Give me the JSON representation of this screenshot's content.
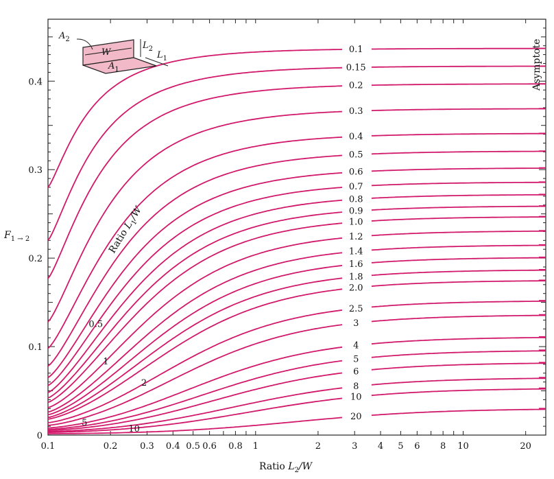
{
  "chart_data": {
    "type": "line",
    "title": "",
    "xlabel": {
      "prefix": "Ratio ",
      "var": "L",
      "sub": "2",
      "suffix": "/W"
    },
    "ylabel": {
      "var": "F",
      "sub": "1 → 2"
    },
    "xscale": "log",
    "xlim": [
      0.1,
      25
    ],
    "ylim": [
      0,
      0.47
    ],
    "grid": false,
    "x_ticks": [
      {
        "v": 0.1,
        "label": "0.1"
      },
      {
        "v": 0.2,
        "label": "0.2"
      },
      {
        "v": 0.3,
        "label": "0.3"
      },
      {
        "v": 0.4,
        "label": "0.4"
      },
      {
        "v": 0.5,
        "label": "0.5"
      },
      {
        "v": 0.6,
        "label": "0.6"
      },
      {
        "v": 0.8,
        "label": "0.8"
      },
      {
        "v": 1,
        "label": "1"
      },
      {
        "v": 2,
        "label": "2"
      },
      {
        "v": 3,
        "label": "3"
      },
      {
        "v": 4,
        "label": "4"
      },
      {
        "v": 5,
        "label": "5"
      },
      {
        "v": 6,
        "label": "6"
      },
      {
        "v": 8,
        "label": "8"
      },
      {
        "v": 10,
        "label": "10"
      },
      {
        "v": 20,
        "label": "20"
      }
    ],
    "y_ticks": [
      {
        "v": 0,
        "label": "0"
      },
      {
        "v": 0.1,
        "label": "0.1"
      },
      {
        "v": 0.2,
        "label": "0.2"
      },
      {
        "v": 0.3,
        "label": "0.3"
      },
      {
        "v": 0.4,
        "label": "0.4"
      }
    ],
    "parameter_label": {
      "prefix": "Ratio ",
      "var": "L",
      "sub": "1",
      "suffix": "/W"
    },
    "asymptote_label": "Asymptote",
    "series_color": "#d1186a",
    "series": [
      {
        "name": "0.1",
        "label": "0.1",
        "y0": 0.28,
        "asym": 0.437,
        "k": 2.4
      },
      {
        "name": "0.15",
        "label": "0.15",
        "y0": 0.22,
        "asym": 0.417,
        "k": 1.9
      },
      {
        "name": "0.2",
        "label": "0.2",
        "y0": 0.177,
        "asym": 0.397,
        "k": 1.6
      },
      {
        "name": "0.3",
        "label": "0.3",
        "y0": 0.128,
        "asym": 0.369,
        "k": 1.25
      },
      {
        "name": "0.4",
        "label": "0.4",
        "y0": 0.098,
        "asym": 0.341,
        "k": 1.0
      },
      {
        "name": "0.5",
        "label": "0.5",
        "y0": 0.078,
        "asym": 0.321,
        "k": 0.85
      },
      {
        "name": "0.6",
        "label": "0.6",
        "y0": 0.065,
        "asym": 0.302,
        "k": 0.74
      },
      {
        "name": "0.7",
        "label": "0.7",
        "y0": 0.056,
        "asym": 0.286,
        "k": 0.66
      },
      {
        "name": "0.8",
        "label": "0.8",
        "y0": 0.048,
        "asym": 0.272,
        "k": 0.59
      },
      {
        "name": "0.9",
        "label": "0.9",
        "y0": 0.042,
        "asym": 0.259,
        "k": 0.53
      },
      {
        "name": "1.0",
        "label": "1.0",
        "y0": 0.037,
        "asym": 0.247,
        "k": 0.48
      },
      {
        "name": "1.2",
        "label": "1.2",
        "y0": 0.031,
        "asym": 0.231,
        "k": 0.41
      },
      {
        "name": "1.4",
        "label": "1.4",
        "y0": 0.026,
        "asym": 0.215,
        "k": 0.36
      },
      {
        "name": "1.6",
        "label": "1.6",
        "y0": 0.023,
        "asym": 0.201,
        "k": 0.32
      },
      {
        "name": "1.8",
        "label": "1.8",
        "y0": 0.02,
        "asym": 0.187,
        "k": 0.29
      },
      {
        "name": "2.0",
        "label": "2.0",
        "y0": 0.018,
        "asym": 0.175,
        "k": 0.26
      },
      {
        "name": "2.5",
        "label": "2.5",
        "y0": 0.014,
        "asym": 0.152,
        "k": 0.21
      },
      {
        "name": "3",
        "label": "3",
        "y0": 0.011,
        "asym": 0.136,
        "k": 0.18
      },
      {
        "name": "4",
        "label": "4",
        "y0": 0.008,
        "asym": 0.111,
        "k": 0.14
      },
      {
        "name": "5",
        "label": "5",
        "y0": 0.0065,
        "asym": 0.096,
        "k": 0.115
      },
      {
        "name": "6",
        "label": "6",
        "y0": 0.0053,
        "asym": 0.082,
        "k": 0.098
      },
      {
        "name": "8",
        "label": "8",
        "y0": 0.004,
        "asym": 0.065,
        "k": 0.075
      },
      {
        "name": "10",
        "label": "10",
        "y0": 0.003,
        "asym": 0.053,
        "k": 0.06
      },
      {
        "name": "20",
        "label": "20",
        "y0": 0.0015,
        "asym": 0.03,
        "k": 0.032
      }
    ],
    "curve_annotations": [
      {
        "label": "0.5",
        "x": 0.17,
        "y": 0.122
      },
      {
        "label": "1",
        "x": 0.19,
        "y": 0.08
      },
      {
        "label": "2",
        "x": 0.29,
        "y": 0.056
      },
      {
        "label": "5",
        "x": 0.15,
        "y": 0.011
      },
      {
        "label": "10",
        "x": 0.26,
        "y": 0.004
      }
    ],
    "inset": {
      "labels": {
        "A2": {
          "var": "A",
          "sub": "2"
        },
        "A1": {
          "var": "A",
          "sub": "1"
        },
        "W": {
          "var": "W",
          "sub": ""
        },
        "L2": {
          "var": "L",
          "sub": "2"
        },
        "L1": {
          "var": "L",
          "sub": "1"
        }
      },
      "fill_color": "#f2b9c9"
    }
  }
}
